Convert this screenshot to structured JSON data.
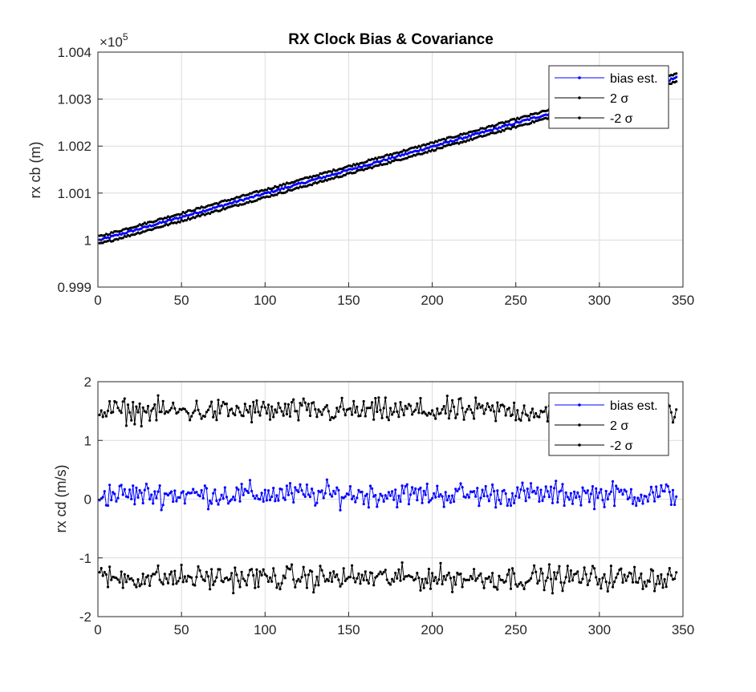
{
  "chart_data": [
    {
      "type": "line",
      "title": "RX Clock Bias & Covariance",
      "ylabel": "rx cb (m)",
      "xlabel": "",
      "xlim": [
        0,
        350
      ],
      "ylim": [
        0.999,
        1.004
      ],
      "y_exponent_label": "×10",
      "y_exponent_power": "5",
      "xticks": [
        "0",
        "50",
        "100",
        "150",
        "200",
        "250",
        "300",
        "350"
      ],
      "yticks": [
        "0.999",
        "1",
        "1.001",
        "1.002",
        "1.003",
        "1.004"
      ],
      "grid": true,
      "legend_position": "top-right",
      "legend": [
        {
          "label": "bias est.",
          "color": "#0000ff"
        },
        {
          "label": "2 σ",
          "color": "#000000"
        },
        {
          "label": "-2 σ",
          "color": "#000000"
        }
      ],
      "series": [
        {
          "name": "bias est.",
          "color": "#0000ff",
          "x_start": 1,
          "x_end": 346,
          "y_start": 1.0,
          "y_end": 1.00345,
          "noise": 2e-05
        },
        {
          "name": "2 σ",
          "color": "#000000",
          "x_start": 1,
          "x_end": 346,
          "y_start": 1.00008,
          "y_end": 1.00353,
          "noise": 2e-05
        },
        {
          "name": "-2 σ",
          "color": "#000000",
          "x_start": 1,
          "x_end": 346,
          "y_start": 0.99992,
          "y_end": 1.00337,
          "noise": 2e-05
        }
      ]
    },
    {
      "type": "line",
      "title": "",
      "ylabel": "rx cd (m/s)",
      "xlabel": "",
      "xlim": [
        0,
        350
      ],
      "ylim": [
        -2,
        2
      ],
      "xticks": [
        "0",
        "50",
        "100",
        "150",
        "200",
        "250",
        "300",
        "350"
      ],
      "yticks": [
        "-2",
        "-1",
        "0",
        "1",
        "2"
      ],
      "grid": true,
      "legend_position": "top-right",
      "legend": [
        {
          "label": "bias est.",
          "color": "#0000ff"
        },
        {
          "label": "2 σ",
          "color": "#000000"
        },
        {
          "label": "-2 σ",
          "color": "#000000"
        }
      ],
      "series": [
        {
          "name": "bias est.",
          "color": "#0000ff",
          "x_start": 1,
          "x_end": 346,
          "center": 0.08,
          "amplitude": 0.22
        },
        {
          "name": "2 σ",
          "color": "#000000",
          "x_start": 1,
          "x_end": 346,
          "center": 1.5,
          "amplitude": 0.22
        },
        {
          "name": "-2 σ",
          "color": "#000000",
          "x_start": 1,
          "x_end": 346,
          "center": -1.34,
          "amplitude": 0.22
        }
      ]
    }
  ]
}
